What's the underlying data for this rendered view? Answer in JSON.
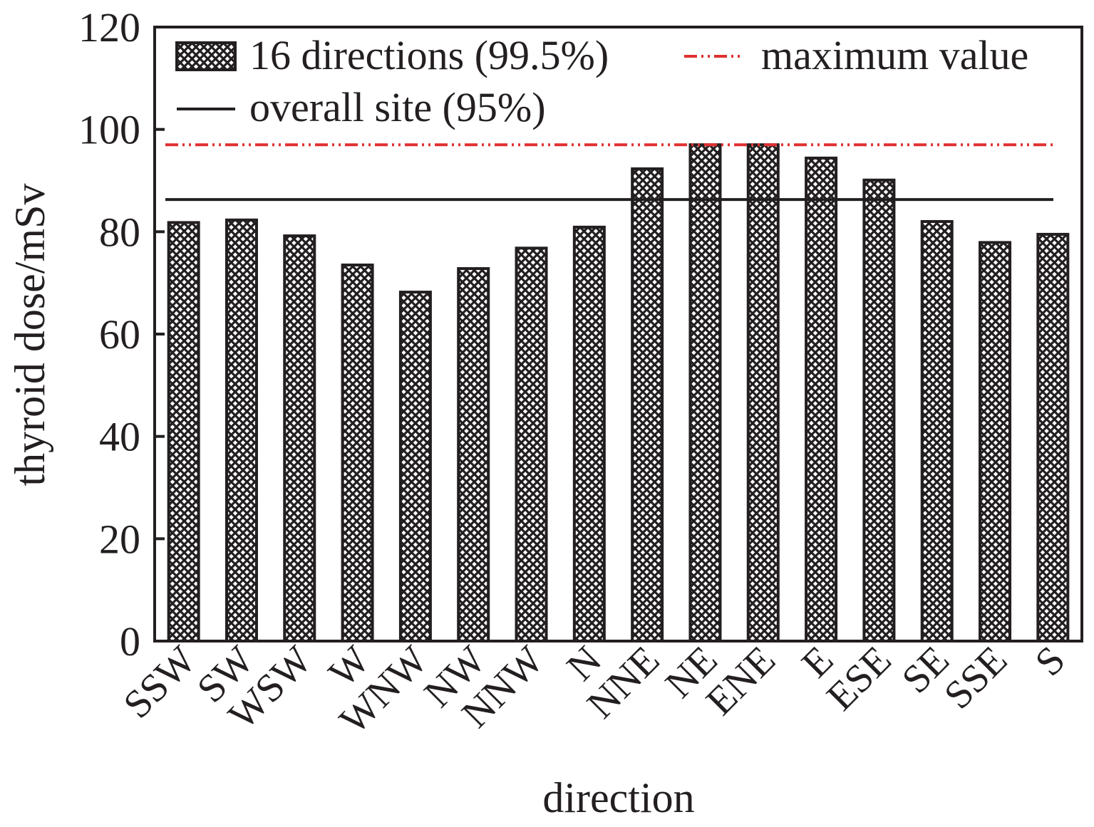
{
  "chart_data": {
    "type": "bar",
    "xlabel": "direction",
    "ylabel": "thyroid dose/mSv",
    "ylim": [
      0,
      120
    ],
    "yticks": [
      0,
      20,
      40,
      60,
      80,
      100,
      120
    ],
    "categories": [
      "SSW",
      "SW",
      "WSW",
      "W",
      "WNW",
      "NW",
      "NNW",
      "N",
      "NNE",
      "NE",
      "ENE",
      "E",
      "ESE",
      "SE",
      "SSE",
      "S"
    ],
    "series": [
      {
        "name": "16 directions (99.5%)",
        "values": [
          81.8,
          82.3,
          79.2,
          73.5,
          68.2,
          72.8,
          76.8,
          80.9,
          92.3,
          97.0,
          97.0,
          94.4,
          90.1,
          82.0,
          77.9,
          79.5
        ]
      }
    ],
    "reference_lines": [
      {
        "name": "maximum value",
        "value": 97.0,
        "color": "#e03030",
        "style": "dash-dot-dot"
      },
      {
        "name": "overall site (95%)",
        "value": 86.3,
        "color": "#231f20",
        "style": "solid"
      }
    ],
    "legend_position": "top",
    "grid": false,
    "bar_fill": "crosshatch"
  }
}
